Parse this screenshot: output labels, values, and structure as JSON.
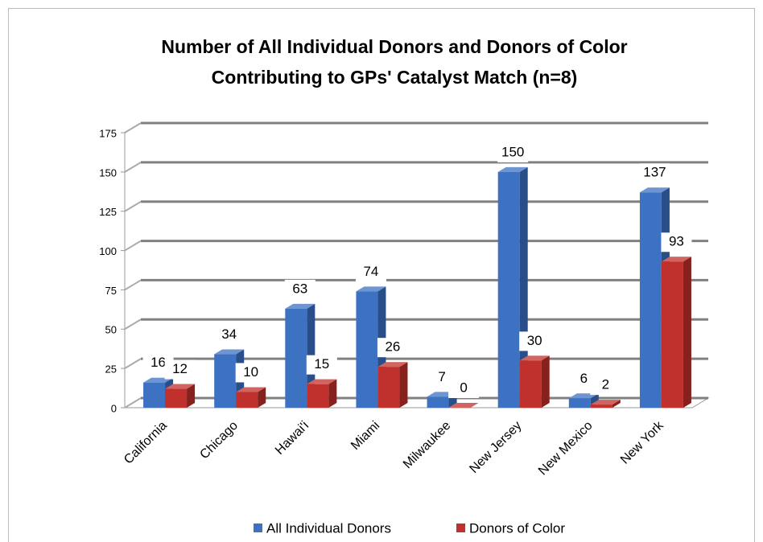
{
  "chart_data": {
    "type": "bar3d",
    "title": [
      "Number of All Individual Donors and Donors of Color",
      "Contributing to GPs' Catalyst Match (n=8)"
    ],
    "categories": [
      "California",
      "Chicago",
      "Hawai'i",
      "Miami",
      "Milwaukee",
      "New Jersey",
      "New Mexico",
      "New York"
    ],
    "series": [
      {
        "name": "All Individual Donors",
        "color": "#3d72c3",
        "values": [
          16,
          34,
          63,
          74,
          7,
          150,
          6,
          137
        ]
      },
      {
        "name": "Donors of Color",
        "color": "#c0302c",
        "values": [
          12,
          10,
          15,
          26,
          0,
          30,
          2,
          93
        ]
      }
    ],
    "ylim": [
      0,
      175
    ],
    "yticks": [
      0,
      25,
      50,
      75,
      100,
      125,
      150,
      175
    ],
    "grid": true,
    "legend": "bottom"
  }
}
